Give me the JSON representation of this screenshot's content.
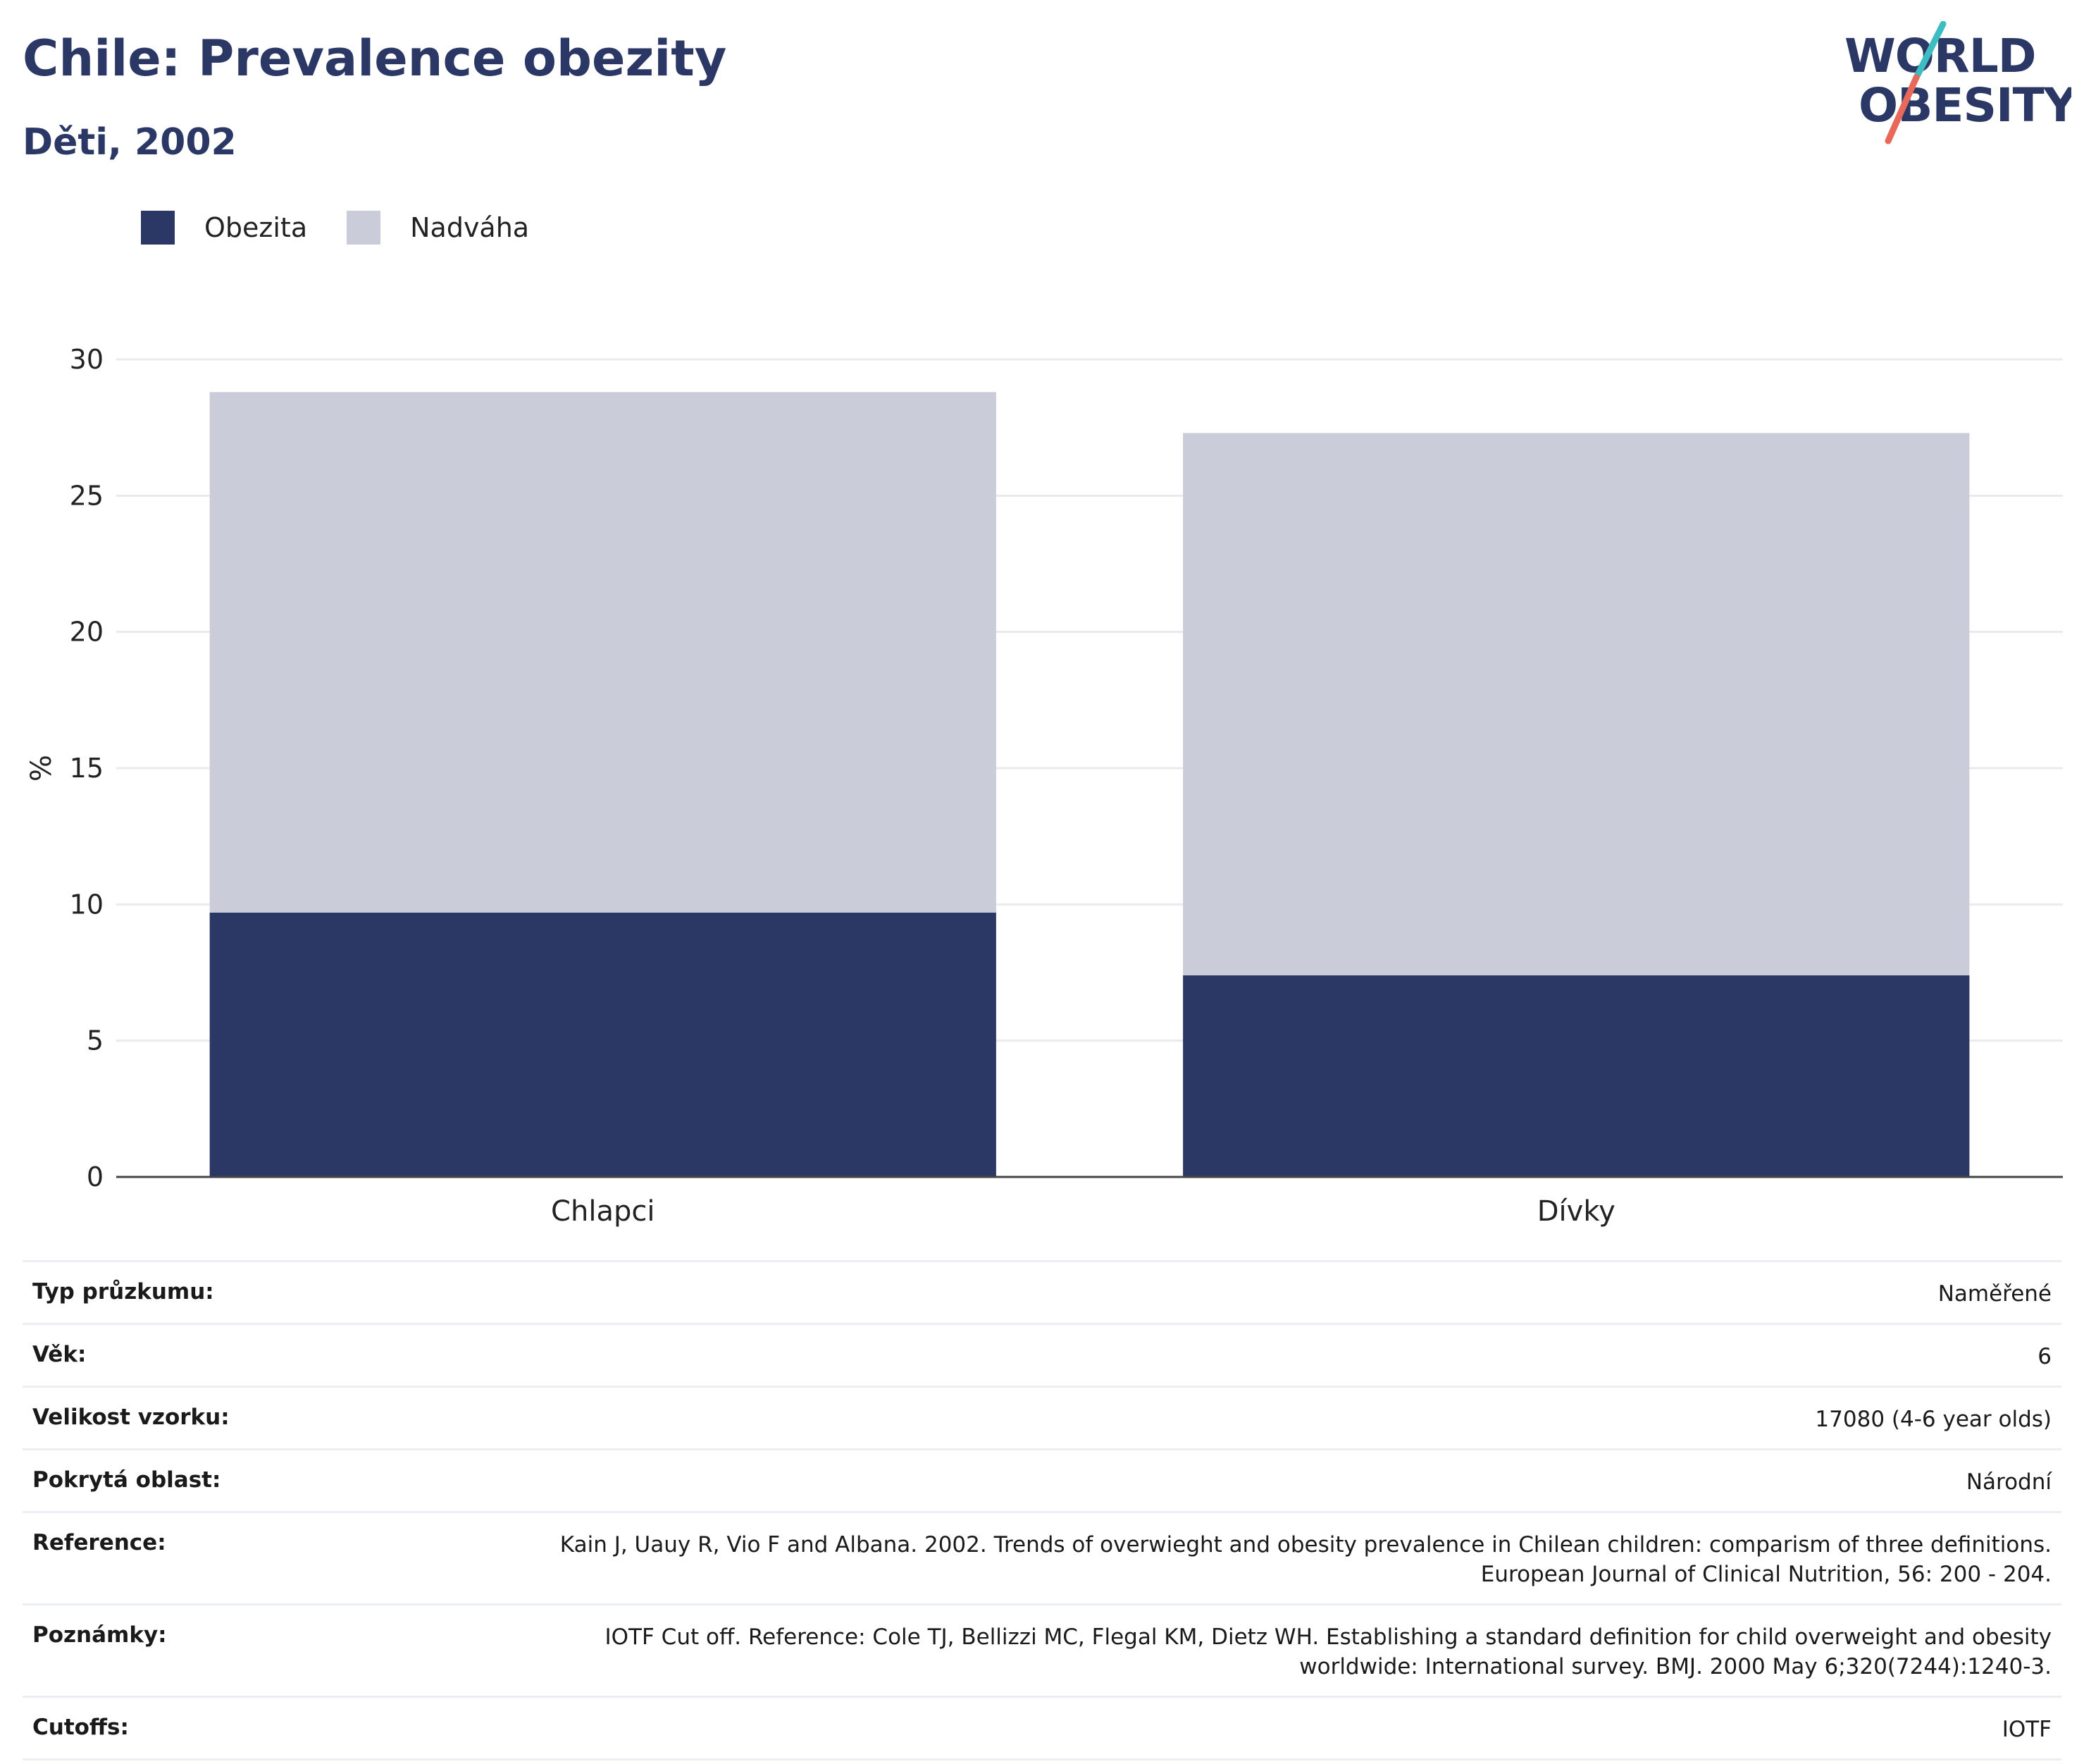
{
  "header": {
    "title": "Chile: Prevalence obezity",
    "subtitle": "Děti, 2002"
  },
  "logo": {
    "line1": "WORLD",
    "line2": "OBESITY",
    "colors": {
      "text": "#2b3765",
      "slash_top": "#3dbdc1",
      "slash_bottom": "#e8695a"
    }
  },
  "colors": {
    "obesity": "#2b3765",
    "overweight": "#cacdd9",
    "grid": "#e9eaee",
    "axis": "#444444"
  },
  "chart_data": {
    "type": "bar",
    "stacked": true,
    "categories": [
      "Chlapci",
      "Dívky"
    ],
    "series": [
      {
        "name": "Obezita",
        "values": [
          9.7,
          7.4
        ],
        "color": "#2b3765"
      },
      {
        "name": "Nadváha",
        "values": [
          19.1,
          19.9
        ],
        "color": "#cacdd9"
      }
    ],
    "ylabel": "%",
    "ylim": [
      0,
      30
    ],
    "yticks": [
      "0",
      "5",
      "10",
      "15",
      "20",
      "25",
      "30"
    ],
    "grid": true,
    "legend": "top-left"
  },
  "info": [
    {
      "key": "Typ průzkumu:",
      "lines": [
        "Naměřené"
      ]
    },
    {
      "key": "Věk:",
      "lines": [
        "6"
      ]
    },
    {
      "key": "Velikost vzorku:",
      "lines": [
        "17080 (4-6 year olds)"
      ]
    },
    {
      "key": "Pokrytá oblast:",
      "lines": [
        "Národní"
      ]
    },
    {
      "key": "Reference:",
      "lines": [
        "Kain J, Uauy R, Vio F and Albana. 2002. Trends of overwieght and obesity prevalence in Chilean children: comparism of three definitions.",
        "European Journal of Clinical Nutrition, 56: 200 - 204."
      ]
    },
    {
      "key": "Poznámky:",
      "lines": [
        "IOTF Cut off. Reference: Cole TJ, Bellizzi MC, Flegal KM, Dietz WH. Establishing a standard definition for child overweight and obesity",
        "worldwide: International survey. BMJ. 2000 May 6;320(7244):1240-3."
      ]
    },
    {
      "key": "Cutoffs:",
      "lines": [
        "IOTF"
      ]
    }
  ]
}
